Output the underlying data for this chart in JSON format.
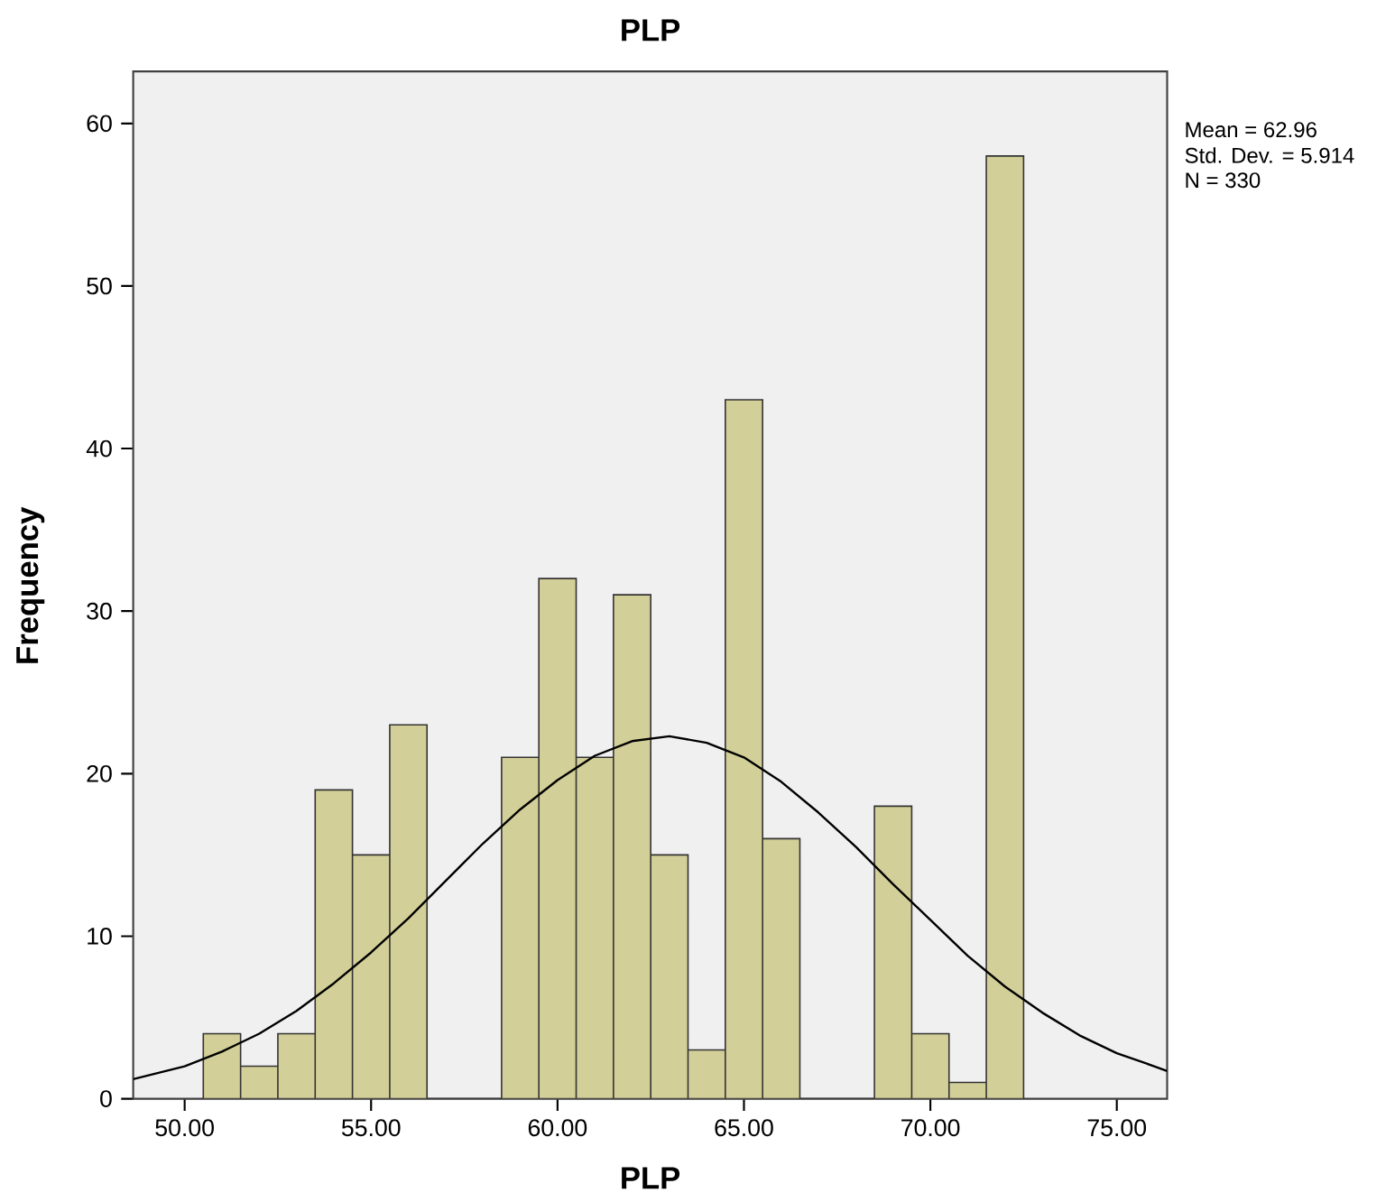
{
  "chart_data": {
    "type": "histogram",
    "title": "PLP",
    "xlabel": "PLP",
    "ylabel": "Frequency",
    "bins": [
      50.5,
      51.5,
      52.5,
      53.5,
      54.5,
      55.5,
      56.5,
      57.5,
      58.5,
      59.5,
      60.5,
      61.5,
      62.5,
      63.5,
      64.5,
      65.5,
      66.5,
      67.5,
      68.5,
      69.5,
      70.5,
      71.5,
      72.5
    ],
    "values": [
      4,
      2,
      4,
      19,
      15,
      23,
      0,
      0,
      21,
      32,
      21,
      31,
      15,
      3,
      43,
      16,
      0,
      0,
      18,
      4,
      1,
      58
    ],
    "color": "#d3cf98",
    "series": [
      {
        "type": "line",
        "color": "#000000",
        "x": [
          48.62,
          50,
          51,
          52,
          53,
          54,
          55,
          56,
          57,
          58,
          59,
          60,
          61,
          62,
          63,
          64,
          65,
          66,
          67,
          68,
          69,
          70,
          71,
          72,
          73,
          74,
          75,
          76,
          76.35
        ],
        "values": [
          1.2,
          2.0,
          2.9,
          4.0,
          5.4,
          7.1,
          9.0,
          11.1,
          13.4,
          15.7,
          17.8,
          19.6,
          21.1,
          22.0,
          22.3,
          21.9,
          21.0,
          19.5,
          17.6,
          15.5,
          13.2,
          11.0,
          8.8,
          6.9,
          5.3,
          3.9,
          2.8,
          2.0,
          1.7
        ]
      }
    ],
    "xlim": [
      48.62,
      76.35
    ],
    "ylim": [
      0,
      63.2
    ],
    "xticks": [
      {
        "value": 50,
        "label": "50.00"
      },
      {
        "value": 55,
        "label": "55.00"
      },
      {
        "value": 60,
        "label": "60.00"
      },
      {
        "value": 65,
        "label": "65.00"
      },
      {
        "value": 70,
        "label": "70.00"
      },
      {
        "value": 75,
        "label": "75.00"
      }
    ],
    "yticks": [
      0,
      10,
      20,
      30,
      40,
      50,
      60
    ],
    "annotations": [
      "Mean = 62.96",
      "Std. Dev. = 5.914",
      "N = 330"
    ]
  }
}
